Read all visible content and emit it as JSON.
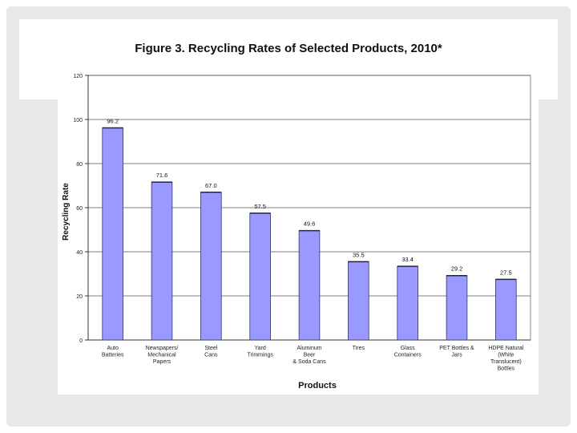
{
  "chart_data": {
    "type": "bar",
    "title": "Figure 3. Recycling Rates of Selected Products, 2010*",
    "xlabel": "Products",
    "ylabel": "Recycling Rate",
    "ylim": [
      0,
      120
    ],
    "yticks": [
      0,
      20,
      40,
      60,
      80,
      100,
      120
    ],
    "grid": true,
    "categories": [
      [
        "Auto",
        "Batteries"
      ],
      [
        "Newspapers/",
        "Mechanical",
        "Papers"
      ],
      [
        "Steel",
        "Cans"
      ],
      [
        "Yard",
        "Trimmings"
      ],
      [
        "Aluminum",
        "Beer",
        "& Soda Cans"
      ],
      [
        "Tires"
      ],
      [
        "Glass",
        "Containers"
      ],
      [
        "PET Bottles &",
        "Jars"
      ],
      [
        "HDPE Natural",
        "(White",
        "Translucent)",
        "Bottles"
      ]
    ],
    "values": [
      96.2,
      71.6,
      67.0,
      57.5,
      49.6,
      35.5,
      33.4,
      29.2,
      27.5
    ],
    "value_labels": [
      "96.2",
      "71.6",
      "67.0",
      "57.5",
      "49.6",
      "35.5",
      "33.4",
      "29.2",
      "27.5"
    ],
    "bar_color": "#9999ff",
    "bar_edge_color": "#333366"
  }
}
